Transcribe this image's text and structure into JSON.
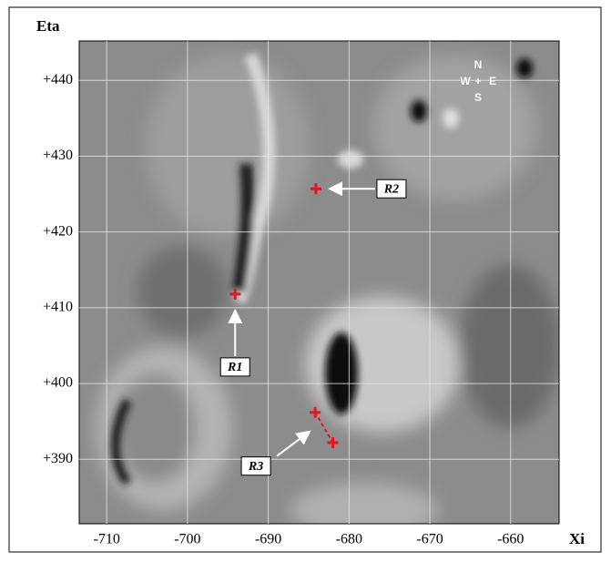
{
  "chart_data": {
    "type": "scatter",
    "x_label": "Xi",
    "y_label": "Eta",
    "xlim": [
      -713.4,
      -654
    ],
    "ylim": [
      381.5,
      445.2
    ],
    "xticks": [
      -710,
      -700,
      -690,
      -680,
      -670,
      -660
    ],
    "yticks": [
      {
        "value": 440,
        "label": "+440"
      },
      {
        "value": 430,
        "label": "+430"
      },
      {
        "value": 420,
        "label": "+420"
      },
      {
        "value": 410,
        "label": "+410"
      },
      {
        "value": 400,
        "label": "+400"
      },
      {
        "value": 390,
        "label": "+390"
      }
    ],
    "grid": true,
    "compass": {
      "north": "N",
      "west": "W",
      "east": "E",
      "south": "S"
    },
    "series": [
      {
        "name": "R1",
        "color": "#e8141c",
        "x": [
          -694.1
        ],
        "y": [
          411.8
        ]
      },
      {
        "name": "R2",
        "color": "#e8141c",
        "x": [
          -684.1
        ],
        "y": [
          425.7
        ]
      },
      {
        "name": "R3",
        "color": "#e8141c",
        "x": [
          -684.2,
          -682.0
        ],
        "y": [
          396.2,
          392.2
        ]
      }
    ]
  }
}
